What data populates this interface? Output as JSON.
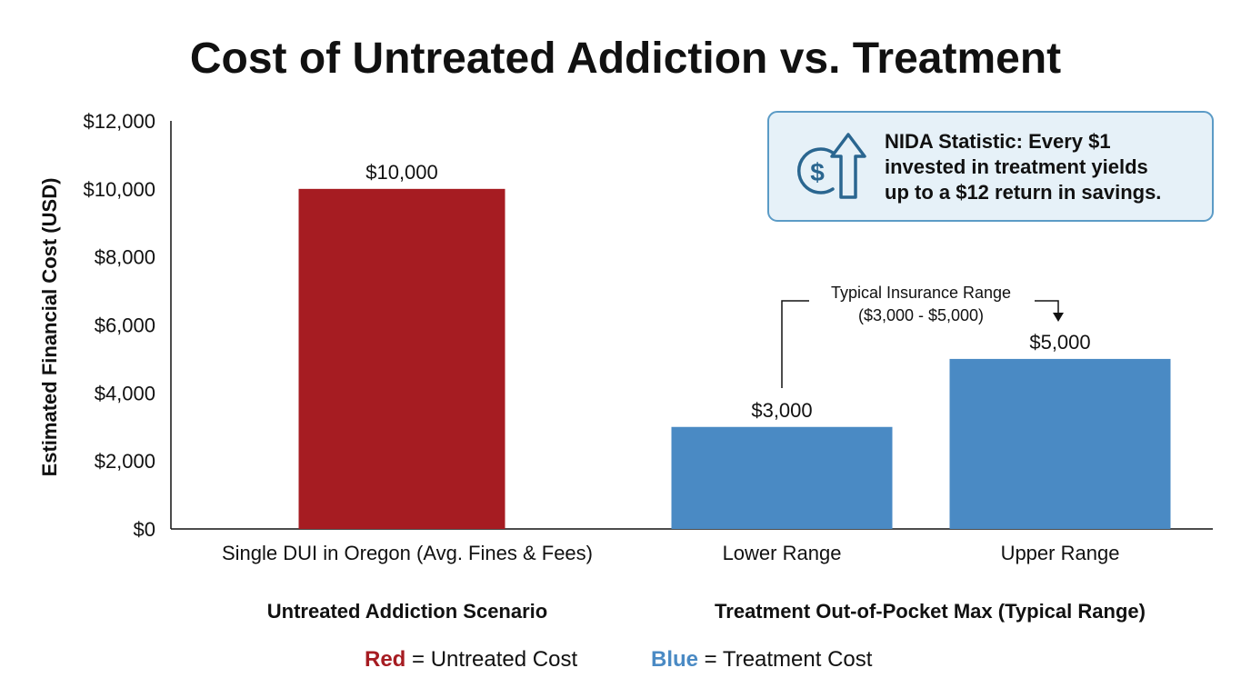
{
  "colors": {
    "untreated": "#a61c22",
    "treatment": "#4a8ac4",
    "callout_fill": "#e6f1f8",
    "callout_border": "#5b9bc6",
    "callout_icon": "#2a6690"
  },
  "chart_data": {
    "type": "bar",
    "title": "Cost of Untreated Addiction vs. Treatment",
    "ylabel": "Estimated Financial Cost (USD)",
    "ylim": [
      0,
      12000
    ],
    "yticks": [
      0,
      2000,
      4000,
      6000,
      8000,
      10000,
      12000
    ],
    "ytick_labels": [
      "$0",
      "$2,000",
      "$4,000",
      "$6,000",
      "$8,000",
      "$10,000",
      "$12,000"
    ],
    "categories": [
      "Single DUI in Oregon (Avg. Fines & Fees)",
      "Lower Range",
      "Upper Range"
    ],
    "values": [
      10000,
      3000,
      5000
    ],
    "value_labels": [
      "$10,000",
      "$3,000",
      "$5,000"
    ],
    "bar_colors": [
      "untreated",
      "treatment",
      "treatment"
    ],
    "groups": [
      "Untreated Addiction Scenario",
      "Treatment Out-of-Pocket Max (Typical Range)"
    ],
    "annotation": {
      "line1": "Typical Insurance Range",
      "line2": "($3,000 - $5,000)"
    },
    "callout": {
      "icon": "dollar-up-arrow-icon",
      "lines": [
        "NIDA Statistic: Every $1",
        "invested in treatment yields",
        "up to a $12 return in savings."
      ]
    },
    "legend": {
      "red_word": "Red",
      "red_rest": " = Untreated Cost",
      "blue_word": "Blue",
      "blue_rest": " = Treatment Cost"
    },
    "grid": false
  }
}
